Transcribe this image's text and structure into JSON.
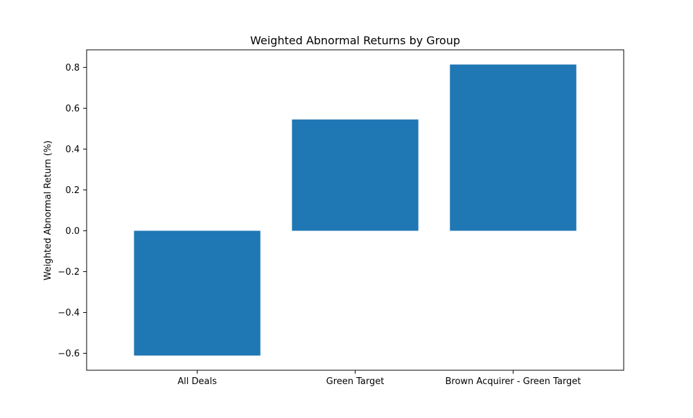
{
  "chart_data": {
    "type": "bar",
    "title": "Weighted Abnormal Returns by Group",
    "xlabel": "",
    "ylabel": "Weighted Abnormal Return (%)",
    "categories": [
      "All Deals",
      "Green Target",
      "Brown Acquirer - Green Target"
    ],
    "values": [
      -0.611,
      0.545,
      0.814
    ],
    "ylim": [
      -0.683,
      0.886
    ],
    "yticks": [
      -0.6,
      -0.4,
      -0.2,
      0.0,
      0.2,
      0.4,
      0.6,
      0.8
    ],
    "ytick_labels": [
      "−0.6",
      "−0.4",
      "−0.2",
      "0.0",
      "0.2",
      "0.4",
      "0.6",
      "0.8"
    ],
    "grid": false,
    "bar_color": "#1f77b4"
  }
}
